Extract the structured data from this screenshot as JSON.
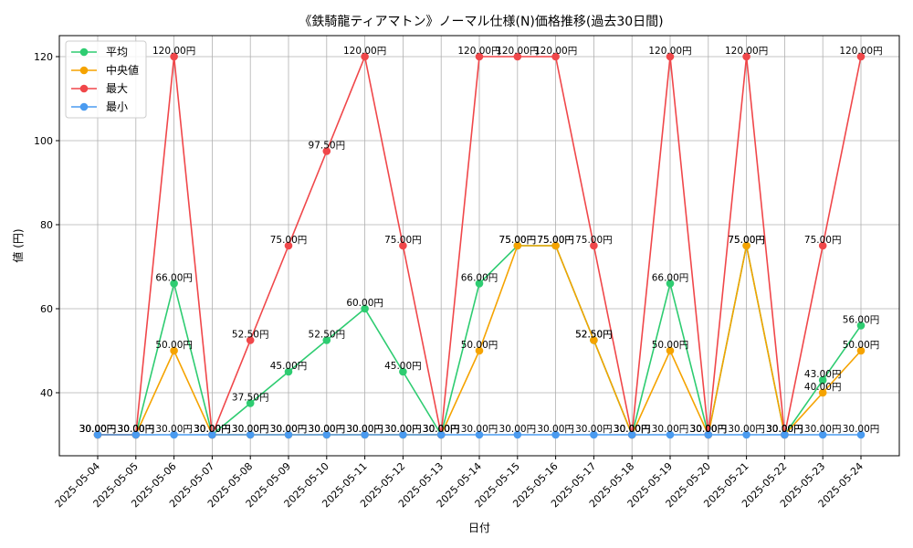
{
  "chart_data": {
    "type": "line",
    "title": "《鉄騎龍ティアマトン》ノーマル仕様(N)価格推移(過去30日間)",
    "xlabel": "日付",
    "ylabel": "値 (円)",
    "ylim": [
      25,
      125
    ],
    "yticks": [
      40,
      60,
      80,
      100,
      120
    ],
    "grid": true,
    "legend_position": "top-left",
    "value_suffix": "円",
    "categories": [
      "2025-05-04",
      "2025-05-05",
      "2025-05-06",
      "2025-05-07",
      "2025-05-08",
      "2025-05-09",
      "2025-05-10",
      "2025-05-11",
      "2025-05-12",
      "2025-05-13",
      "2025-05-14",
      "2025-05-15",
      "2025-05-16",
      "2025-05-17",
      "2025-05-18",
      "2025-05-19",
      "2025-05-20",
      "2025-05-21",
      "2025-05-22",
      "2025-05-23",
      "2025-05-24"
    ],
    "series": [
      {
        "name": "平均",
        "color": "#2ecc71",
        "values": [
          30,
          30,
          66,
          30,
          37.5,
          45,
          52.5,
          60,
          45,
          30,
          66,
          75,
          75,
          52.5,
          30,
          66,
          30,
          75,
          30,
          43,
          56
        ]
      },
      {
        "name": "中央値",
        "color": "#f5a300",
        "values": [
          30,
          30,
          50,
          30,
          30,
          30,
          30,
          30,
          30,
          30,
          50,
          75,
          75,
          52.5,
          30,
          50,
          30,
          75,
          30,
          40,
          50
        ]
      },
      {
        "name": "最大",
        "color": "#f0474a",
        "values": [
          30,
          30,
          120,
          30,
          52.5,
          75,
          97.5,
          120,
          75,
          30,
          120,
          120,
          120,
          75,
          30,
          120,
          30,
          120,
          30,
          75,
          120
        ]
      },
      {
        "name": "最小",
        "color": "#4a9bf0",
        "values": [
          30,
          30,
          30,
          30,
          30,
          30,
          30,
          30,
          30,
          30,
          30,
          30,
          30,
          30,
          30,
          30,
          30,
          30,
          30,
          30,
          30
        ]
      }
    ]
  }
}
